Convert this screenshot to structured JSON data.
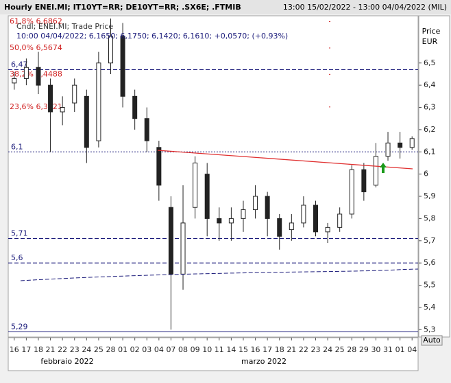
{
  "chart_data": {
    "type": "candlestick",
    "title": "Hourly ENEI.MI; IT10YT=RR; DE10YT=RR; .SX6E; .FTMIB",
    "subtitle": "13:00 15/02/2022 - 13:00 04/04/2022 (MIL)",
    "legend_title": "Cndl; ENEI.MI; Trade Price",
    "legend_values": "10:00 04/04/2022; 6,1650; 6,1750; 6,1420; 6,1610; +0,0570; (+0,93%)",
    "y_label": "Price",
    "y_unit": "EUR",
    "scale_button": "Auto",
    "month_labels": [
      "febbraio 2022",
      "marzo 2022"
    ],
    "categories": [
      "16",
      "17",
      "18",
      "21",
      "22",
      "23",
      "24",
      "25",
      "28",
      "01",
      "02",
      "03",
      "04",
      "07",
      "08",
      "09",
      "10",
      "11",
      "14",
      "15",
      "16",
      "17",
      "18",
      "21",
      "22",
      "23",
      "24",
      "25",
      "28",
      "29",
      "30",
      "31",
      "01",
      "04"
    ],
    "open": [
      6.41,
      6.43,
      6.48,
      6.4,
      6.28,
      6.32,
      6.35,
      6.15,
      6.5,
      6.62,
      6.35,
      6.25,
      6.12,
      5.85,
      5.55,
      5.85,
      6.0,
      5.8,
      5.78,
      5.8,
      5.84,
      5.9,
      5.8,
      5.75,
      5.78,
      5.86,
      5.74,
      5.76,
      5.82,
      6.02,
      5.95,
      6.08,
      6.14,
      6.12
    ],
    "high": [
      6.46,
      6.52,
      6.55,
      6.43,
      6.35,
      6.43,
      6.38,
      6.55,
      6.7,
      6.68,
      6.38,
      6.3,
      6.15,
      5.9,
      5.95,
      6.08,
      6.05,
      5.85,
      5.85,
      5.88,
      5.95,
      5.92,
      5.82,
      5.82,
      5.9,
      5.88,
      5.78,
      5.85,
      6.04,
      6.05,
      6.14,
      6.19,
      6.19,
      6.17
    ],
    "low": [
      6.38,
      6.4,
      6.36,
      6.1,
      6.22,
      6.28,
      6.05,
      6.12,
      6.45,
      6.3,
      6.2,
      6.1,
      5.88,
      5.3,
      5.48,
      5.8,
      5.72,
      5.7,
      5.7,
      5.74,
      5.8,
      5.72,
      5.66,
      5.7,
      5.76,
      5.72,
      5.69,
      5.74,
      5.8,
      5.88,
      5.94,
      6.06,
      6.07,
      6.11
    ],
    "close": [
      6.43,
      6.48,
      6.4,
      6.28,
      6.3,
      6.4,
      6.12,
      6.5,
      6.62,
      6.35,
      6.25,
      6.15,
      5.95,
      5.55,
      5.78,
      6.05,
      5.8,
      5.78,
      5.8,
      5.84,
      5.9,
      5.8,
      5.72,
      5.78,
      5.86,
      5.74,
      5.76,
      5.82,
      6.02,
      5.92,
      6.08,
      6.14,
      6.12,
      6.16
    ],
    "color": "#222222",
    "ylim": [
      5.27,
      6.7
    ],
    "yticks": [
      {
        "value": 5.3,
        "label": "5,3"
      },
      {
        "value": 5.4,
        "label": "5,4"
      },
      {
        "value": 5.5,
        "label": "5,5"
      },
      {
        "value": 5.6,
        "label": "5,6"
      },
      {
        "value": 5.7,
        "label": "5,7"
      },
      {
        "value": 5.8,
        "label": "5,8"
      },
      {
        "value": 5.9,
        "label": "5,9"
      },
      6,
      {
        "value": 6.1,
        "label": "6,1"
      },
      {
        "value": 6.2,
        "label": "6,2"
      },
      {
        "value": 6.3,
        "label": "6,3"
      },
      {
        "value": 6.4,
        "label": "6,4"
      },
      {
        "value": 6.5,
        "label": "6,5"
      }
    ],
    "levels": [
      {
        "value": 6.47,
        "label": "6,47"
      },
      {
        "value": 6.1,
        "label": "6,1"
      },
      {
        "value": 5.71,
        "label": "5,71"
      },
      {
        "value": 5.6,
        "label": "5,6"
      },
      {
        "value": 5.29,
        "label": "5,29"
      }
    ],
    "level_color": "#1a1a7a",
    "fib_levels": [
      {
        "value": 6.6862,
        "label": "61,8% 6,6862"
      },
      {
        "value": 6.5674,
        "label": "50,0% 6,5674"
      },
      {
        "value": 6.4488,
        "label": "38,2% 6,4488"
      },
      {
        "value": 6.3021,
        "label": "23,6% 6,3021"
      }
    ],
    "fib_color": "#d02020"
  }
}
